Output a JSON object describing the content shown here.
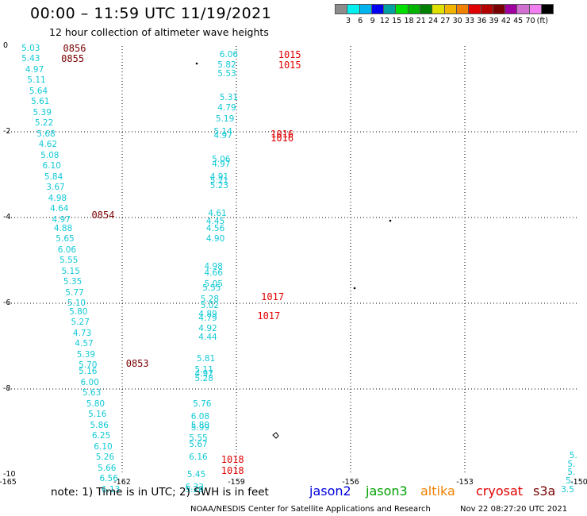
{
  "header": {
    "title": "00:00 – 11:59 UTC 11/19/2021",
    "subtitle": "12 hour collection of altimeter wave heights"
  },
  "colorbar": {
    "colors": [
      "#8c8c8c",
      "#00f0f0",
      "#00b4f0",
      "#0000f0",
      "#00a0a0",
      "#00e000",
      "#00b400",
      "#008000",
      "#e0e000",
      "#f0b400",
      "#f08000",
      "#e00000",
      "#b40000",
      "#780000",
      "#a000a0",
      "#d070d0",
      "#f080f0",
      "#000000"
    ],
    "labels": [
      "3",
      "6",
      "9",
      "12",
      "15",
      "18",
      "21",
      "24",
      "27",
      "30",
      "33",
      "36",
      "39",
      "42",
      "45",
      "70",
      "(ft)"
    ]
  },
  "axes": {
    "y_ticks": [
      "0",
      "-2",
      "-4",
      "-6",
      "-8",
      "-10"
    ],
    "x_ticks": [
      "-165",
      "-162",
      "-159",
      "-156",
      "-153",
      "-150"
    ]
  },
  "map_data": {
    "lon_range": [
      -165,
      -150
    ],
    "lat_range": [
      -10,
      0
    ],
    "wave_color": "#11c9d6",
    "track1": [
      {
        "v": "5.03",
        "lon": -164.4,
        "lat": -0.05
      },
      {
        "v": "5.43",
        "lon": -164.4,
        "lat": -0.3
      },
      {
        "v": "4.97",
        "lon": -164.3,
        "lat": -0.55
      },
      {
        "v": "5.11",
        "lon": -164.25,
        "lat": -0.8
      },
      {
        "v": "5.64",
        "lon": -164.2,
        "lat": -1.05
      },
      {
        "v": "5.61",
        "lon": -164.15,
        "lat": -1.3
      },
      {
        "v": "5.39",
        "lon": -164.1,
        "lat": -1.55
      },
      {
        "v": "5.22",
        "lon": -164.05,
        "lat": -1.8
      },
      {
        "v": "5.68",
        "lon": -164.0,
        "lat": -2.05
      },
      {
        "v": "4.62",
        "lon": -163.95,
        "lat": -2.3
      },
      {
        "v": "5.08",
        "lon": -163.9,
        "lat": -2.55
      },
      {
        "v": "6.10",
        "lon": -163.85,
        "lat": -2.8
      },
      {
        "v": "5.84",
        "lon": -163.8,
        "lat": -3.05
      },
      {
        "v": "3.67",
        "lon": -163.75,
        "lat": -3.3
      },
      {
        "v": "4.98",
        "lon": -163.7,
        "lat": -3.55
      },
      {
        "v": "4.64",
        "lon": -163.65,
        "lat": -3.8
      },
      {
        "v": "4.97",
        "lon": -163.6,
        "lat": -4.05
      },
      {
        "v": "4.88",
        "lon": -163.55,
        "lat": -4.25
      },
      {
        "v": "5.65",
        "lon": -163.5,
        "lat": -4.5
      },
      {
        "v": "6.06",
        "lon": -163.45,
        "lat": -4.75
      },
      {
        "v": "5.55",
        "lon": -163.4,
        "lat": -5.0
      },
      {
        "v": "5.15",
        "lon": -163.35,
        "lat": -5.25
      },
      {
        "v": "5.35",
        "lon": -163.3,
        "lat": -5.5
      },
      {
        "v": "5.77",
        "lon": -163.25,
        "lat": -5.75
      },
      {
        "v": "5.10",
        "lon": -163.2,
        "lat": -6.0
      },
      {
        "v": "5.80",
        "lon": -163.15,
        "lat": -6.2
      },
      {
        "v": "5.27",
        "lon": -163.1,
        "lat": -6.45
      },
      {
        "v": "4.73",
        "lon": -163.05,
        "lat": -6.7
      },
      {
        "v": "4.57",
        "lon": -163.0,
        "lat": -6.95
      },
      {
        "v": "5.39",
        "lon": -162.95,
        "lat": -7.2
      },
      {
        "v": "5.70",
        "lon": -162.9,
        "lat": -7.45
      },
      {
        "v": "5.16",
        "lon": -162.9,
        "lat": -7.6
      },
      {
        "v": "6.00",
        "lon": -162.85,
        "lat": -7.85
      },
      {
        "v": "5.63",
        "lon": -162.8,
        "lat": -8.1
      },
      {
        "v": "5.80",
        "lon": -162.7,
        "lat": -8.35
      },
      {
        "v": "5.16",
        "lon": -162.65,
        "lat": -8.6
      },
      {
        "v": "5.86",
        "lon": -162.6,
        "lat": -8.85
      },
      {
        "v": "6.25",
        "lon": -162.55,
        "lat": -9.1
      },
      {
        "v": "6.10",
        "lon": -162.5,
        "lat": -9.35
      },
      {
        "v": "5.26",
        "lon": -162.45,
        "lat": -9.6
      },
      {
        "v": "5.66",
        "lon": -162.4,
        "lat": -9.85
      },
      {
        "v": "6.56",
        "lon": -162.35,
        "lat": -10.1
      },
      {
        "v": "6.13",
        "lon": -162.3,
        "lat": -10.35
      }
    ],
    "track2": [
      {
        "v": "6.06",
        "lon": -159.2,
        "lat": -0.2
      },
      {
        "v": "5.82",
        "lon": -159.25,
        "lat": -0.45
      },
      {
        "v": "5.53",
        "lon": -159.25,
        "lat": -0.65
      },
      {
        "v": "5.31",
        "lon": -159.2,
        "lat": -1.2
      },
      {
        "v": "4.79",
        "lon": -159.25,
        "lat": -1.45
      },
      {
        "v": "5.19",
        "lon": -159.3,
        "lat": -1.7
      },
      {
        "v": "5.14",
        "lon": -159.35,
        "lat": -2.0
      },
      {
        "v": "4.97",
        "lon": -159.35,
        "lat": -2.1
      },
      {
        "v": "5.06",
        "lon": -159.4,
        "lat": -2.65
      },
      {
        "v": "4.97",
        "lon": -159.4,
        "lat": -2.75
      },
      {
        "v": "4.91",
        "lon": -159.45,
        "lat": -3.05
      },
      {
        "v": "5.21",
        "lon": -159.45,
        "lat": -3.15
      },
      {
        "v": "5.23",
        "lon": -159.45,
        "lat": -3.25
      },
      {
        "v": "4.61",
        "lon": -159.5,
        "lat": -3.9
      },
      {
        "v": "4.45",
        "lon": -159.55,
        "lat": -4.1
      },
      {
        "v": "4.56",
        "lon": -159.55,
        "lat": -4.25
      },
      {
        "v": "4.90",
        "lon": -159.55,
        "lat": -4.5
      },
      {
        "v": "4.98",
        "lon": -159.6,
        "lat": -5.15
      },
      {
        "v": "4.66",
        "lon": -159.6,
        "lat": -5.3
      },
      {
        "v": "5.05",
        "lon": -159.6,
        "lat": -5.55
      },
      {
        "v": "5.55",
        "lon": -159.65,
        "lat": -5.65
      },
      {
        "v": "5.28",
        "lon": -159.7,
        "lat": -5.9
      },
      {
        "v": "5.02",
        "lon": -159.7,
        "lat": -6.05
      },
      {
        "v": "4.89",
        "lon": -159.75,
        "lat": -6.25
      },
      {
        "v": "4.79",
        "lon": -159.75,
        "lat": -6.35
      },
      {
        "v": "4.92",
        "lon": -159.75,
        "lat": -6.6
      },
      {
        "v": "4.44",
        "lon": -159.75,
        "lat": -6.8
      },
      {
        "v": "5.81",
        "lon": -159.8,
        "lat": -7.3
      },
      {
        "v": "5.11",
        "lon": -159.85,
        "lat": -7.55
      },
      {
        "v": "4.97",
        "lon": -159.85,
        "lat": -7.65
      },
      {
        "v": "5.28",
        "lon": -159.85,
        "lat": -7.75
      },
      {
        "v": "5.76",
        "lon": -159.9,
        "lat": -8.35
      },
      {
        "v": "6.08",
        "lon": -159.95,
        "lat": -8.65
      },
      {
        "v": "5.80",
        "lon": -159.95,
        "lat": -8.85
      },
      {
        "v": "5.99",
        "lon": -159.95,
        "lat": -8.9
      },
      {
        "v": "5.55",
        "lon": -160.0,
        "lat": -9.15
      },
      {
        "v": "5.67",
        "lon": -160.0,
        "lat": -9.3
      },
      {
        "v": "6.16",
        "lon": -160.0,
        "lat": -9.6
      },
      {
        "v": "5.45",
        "lon": -160.05,
        "lat": -10.0
      },
      {
        "v": "6.33",
        "lon": -160.1,
        "lat": -10.3
      },
      {
        "v": "5.28",
        "lon": -160.1,
        "lat": -10.35
      }
    ],
    "track3": [
      {
        "v": "5.",
        "lon": -150.15,
        "lat": -9.55
      },
      {
        "v": "5.",
        "lon": -150.2,
        "lat": -9.75
      },
      {
        "v": "5.",
        "lon": -150.2,
        "lat": -9.95
      },
      {
        "v": "5.",
        "lon": -150.25,
        "lat": -10.15
      },
      {
        "v": "3.5",
        "lon": -150.3,
        "lat": -10.35
      }
    ],
    "time_labels": [
      {
        "t": "0856",
        "lon": -163.25,
        "lat": -0.05,
        "color": "#780000"
      },
      {
        "t": "0855",
        "lon": -163.3,
        "lat": -0.3,
        "color": "#780000"
      },
      {
        "t": "0854",
        "lon": -162.5,
        "lat": -3.95,
        "color": "#780000"
      },
      {
        "t": "0853",
        "lon": -161.6,
        "lat": -7.4,
        "color": "#780000"
      },
      {
        "t": "1015",
        "lon": -157.6,
        "lat": -0.2,
        "color": "#e00000"
      },
      {
        "t": "1015",
        "lon": -157.6,
        "lat": -0.45,
        "color": "#e00000"
      },
      {
        "t": "1016",
        "lon": -157.8,
        "lat": -2.05,
        "color": "#e00000"
      },
      {
        "t": "1016",
        "lon": -157.8,
        "lat": -2.15,
        "color": "#e00000"
      },
      {
        "t": "1017",
        "lon": -158.05,
        "lat": -5.85,
        "color": "#e00000"
      },
      {
        "t": "1017",
        "lon": -158.15,
        "lat": -6.3,
        "color": "#e00000"
      },
      {
        "t": "1018",
        "lon": -159.1,
        "lat": -9.65,
        "color": "#e00000"
      },
      {
        "t": "1018",
        "lon": -159.1,
        "lat": -9.9,
        "color": "#e00000"
      }
    ]
  },
  "footer": {
    "note": "note:  1) Time is in UTC;  2) SWH is in feet",
    "legend": [
      {
        "label": "jason2",
        "color": "#0000e0"
      },
      {
        "label": "jason3",
        "color": "#00a000"
      },
      {
        "label": "altika",
        "color": "#f08000"
      },
      {
        "label": "cryosat",
        "color": "#e00000"
      },
      {
        "label": "s3a",
        "color": "#780000"
      }
    ],
    "credit": "NOAA/NESDIS Center for Satellite Applications and Research",
    "timestamp": "Nov 22 08:27:20 UTC 2021"
  }
}
